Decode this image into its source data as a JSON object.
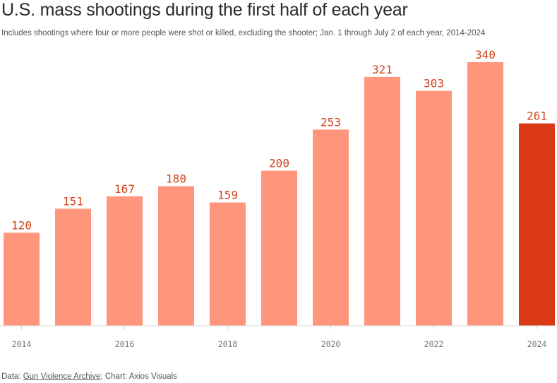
{
  "header": {
    "title": "U.S. mass shootings during the first half of each year",
    "subtitle": "Includes shootings where four or more people were shot or killed, excluding the shooter; Jan. 1 through July 2 of each year, 2014-2024"
  },
  "footer": {
    "data_prefix": "Data: ",
    "source_link": "Gun Violence Archive",
    "credit": "; Chart: Axios Visuals"
  },
  "colors": {
    "bar": "#ff967b",
    "bar_highlight": "#d93a15",
    "label": "#d4411c",
    "axis": "#dddddd"
  },
  "chart_data": {
    "type": "bar",
    "categories": [
      "2014",
      "2015",
      "2016",
      "2017",
      "2018",
      "2019",
      "2020",
      "2021",
      "2022",
      "2023",
      "2024"
    ],
    "values": [
      120,
      151,
      167,
      180,
      159,
      200,
      253,
      321,
      303,
      340,
      261
    ],
    "tick_labels": [
      "2014",
      "2016",
      "2018",
      "2020",
      "2022",
      "2024"
    ],
    "highlight": "2024",
    "title": "U.S. mass shootings during the first half of each year",
    "xlabel": "",
    "ylabel": "",
    "ylim": [
      0,
      340
    ],
    "grid": false
  }
}
